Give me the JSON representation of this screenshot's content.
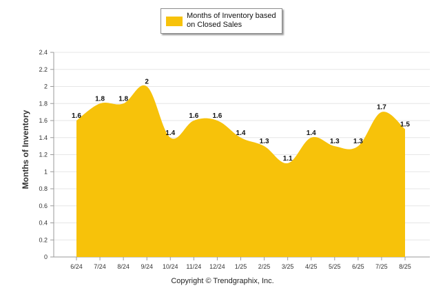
{
  "chart_data": {
    "type": "area",
    "categories": [
      "6/24",
      "7/24",
      "8/24",
      "9/24",
      "10/24",
      "11/24",
      "12/24",
      "1/25",
      "2/25",
      "3/25",
      "4/25",
      "5/25",
      "6/25",
      "7/25",
      "8/25"
    ],
    "series": [
      {
        "name": "Months of Inventory based on Closed Sales",
        "values": [
          1.6,
          1.8,
          1.8,
          2,
          1.4,
          1.6,
          1.6,
          1.4,
          1.3,
          1.1,
          1.4,
          1.3,
          1.3,
          1.7,
          1.5
        ]
      }
    ],
    "data_labels": [
      "1.6",
      "1.8",
      "1.8",
      "2",
      "1.4",
      "1.6",
      "1.6",
      "1.4",
      "1.3",
      "1.1",
      "1.4",
      "1.3",
      "1.3",
      "1.7",
      "1.5"
    ],
    "ylabel": "Months of Inventory",
    "xlabel": "",
    "ylim": [
      0,
      2.4
    ],
    "yticks": [
      "0",
      "0.2",
      "0.4",
      "0.6",
      "0.8",
      "1",
      "1.2",
      "1.4",
      "1.6",
      "1.8",
      "2",
      "2.2",
      "2.4"
    ],
    "grid": true,
    "legend": "top-center",
    "color": "#f7c20a"
  },
  "footer": {
    "copyright": "Copyright © Trendgraphix, Inc."
  }
}
